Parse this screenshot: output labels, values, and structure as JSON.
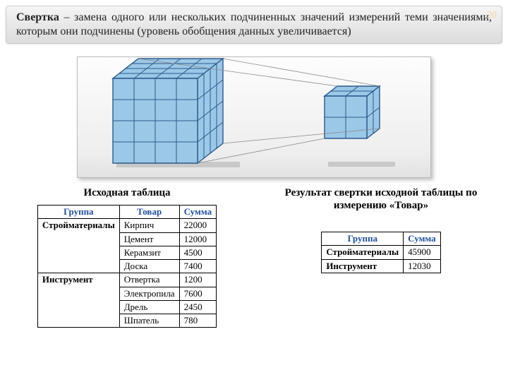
{
  "page_number": "20",
  "definition_bold": "Свертка",
  "definition_rest": " – замена одного или нескольких подчиненных значений измерений теми значениями, которым они подчинены (уровень обобщения данных увеличивается)",
  "cube_fill": "#9cc8e8",
  "cube_stroke": "#2a5a8a",
  "left_caption": "Исходная таблица",
  "right_caption": "Результат свертки исходной таблицы по измерению «Товар»",
  "left_table": {
    "headers": [
      "Группа",
      "Товар",
      "Сумма"
    ],
    "groups": [
      {
        "name": "Стройматериалы",
        "rows": [
          [
            "Кирпич",
            "22000"
          ],
          [
            "Цемент",
            "12000"
          ],
          [
            "Керамзит",
            "4500"
          ],
          [
            "Доска",
            "7400"
          ]
        ]
      },
      {
        "name": "Инструмент",
        "rows": [
          [
            "Отвертка",
            "1200"
          ],
          [
            "Электропила",
            "7600"
          ],
          [
            "Дрель",
            "2450"
          ],
          [
            "Шпатель",
            "780"
          ]
        ]
      }
    ]
  },
  "right_table": {
    "headers": [
      "Группа",
      "Сумма"
    ],
    "rows": [
      [
        "Стройматериалы",
        "45900"
      ],
      [
        "Инструмент",
        "12030"
      ]
    ]
  }
}
